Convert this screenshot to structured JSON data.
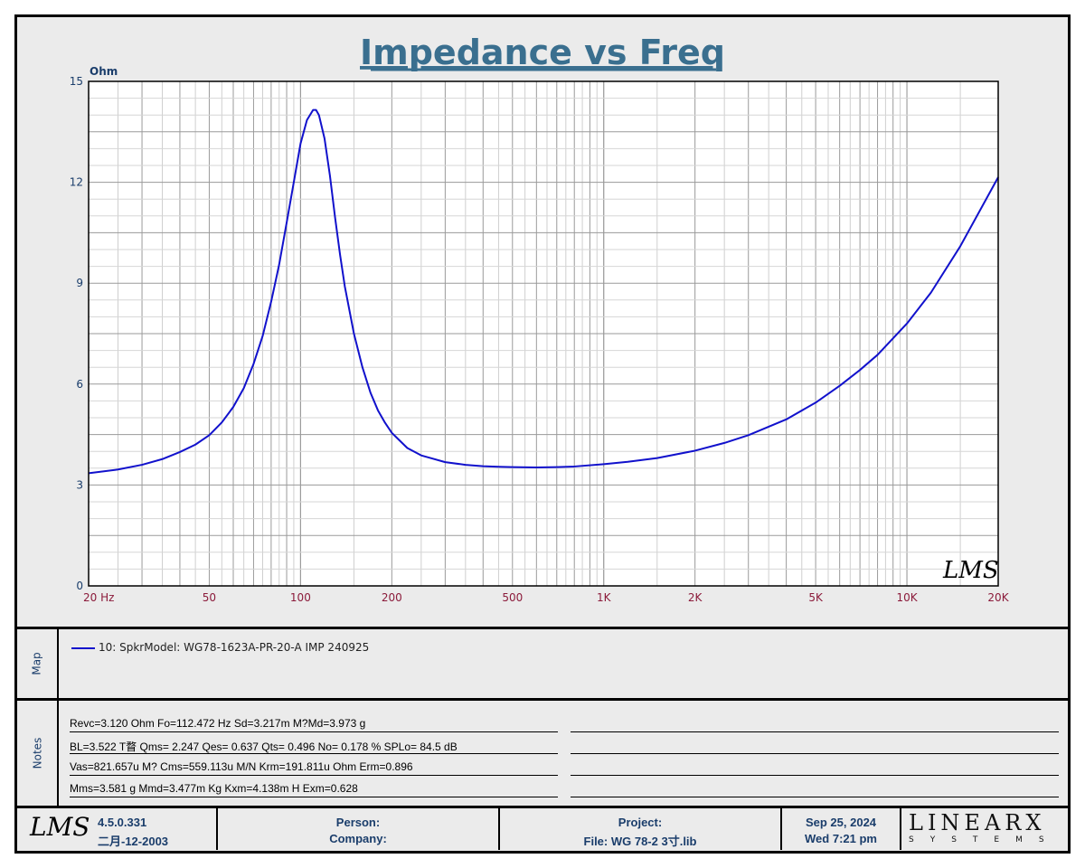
{
  "chart_data": {
    "type": "line",
    "title": "Impedance vs Freq",
    "ylabel": "Ohm",
    "xscale": "log",
    "xlim": [
      20,
      20000
    ],
    "ylim": [
      0,
      15
    ],
    "grid": true,
    "yticks": [
      {
        "v": 0,
        "label": "0"
      },
      {
        "v": 3,
        "label": "3"
      },
      {
        "v": 6,
        "label": "6"
      },
      {
        "v": 9,
        "label": "9"
      },
      {
        "v": 12,
        "label": "12"
      },
      {
        "v": 15,
        "label": "15"
      }
    ],
    "xticks": [
      {
        "v": 20,
        "label": "20  Hz"
      },
      {
        "v": 50,
        "label": "50"
      },
      {
        "v": 100,
        "label": "100"
      },
      {
        "v": 200,
        "label": "200"
      },
      {
        "v": 500,
        "label": "500"
      },
      {
        "v": 1000,
        "label": "1K"
      },
      {
        "v": 2000,
        "label": "2K"
      },
      {
        "v": 5000,
        "label": "5K"
      },
      {
        "v": 10000,
        "label": "10K"
      },
      {
        "v": 20000,
        "label": "20K"
      }
    ],
    "series": [
      {
        "name": "10: SpkrModel: WG78-1623A-PR-20-A IMP 240925",
        "color": "#1111cc",
        "x": [
          20,
          25,
          30,
          35,
          40,
          45,
          50,
          55,
          60,
          65,
          70,
          75,
          80,
          85,
          90,
          95,
          100,
          105,
          110,
          112.5,
          115,
          120,
          125,
          130,
          135,
          140,
          150,
          160,
          170,
          180,
          190,
          200,
          225,
          250,
          300,
          350,
          400,
          450,
          500,
          600,
          700,
          800,
          1000,
          1200,
          1500,
          2000,
          2500,
          3000,
          4000,
          5000,
          6000,
          7000,
          8000,
          10000,
          12000,
          15000,
          20000
        ],
        "y": [
          3.35,
          3.46,
          3.6,
          3.77,
          3.98,
          4.2,
          4.48,
          4.86,
          5.32,
          5.88,
          6.6,
          7.43,
          8.45,
          9.55,
          10.8,
          12.0,
          13.15,
          13.85,
          14.15,
          14.15,
          14.0,
          13.3,
          12.2,
          10.95,
          9.85,
          8.9,
          7.5,
          6.5,
          5.75,
          5.22,
          4.85,
          4.55,
          4.1,
          3.88,
          3.68,
          3.6,
          3.56,
          3.54,
          3.53,
          3.52,
          3.53,
          3.55,
          3.62,
          3.69,
          3.8,
          4.02,
          4.25,
          4.48,
          4.95,
          5.45,
          5.95,
          6.42,
          6.87,
          7.8,
          8.72,
          10.1,
          12.15
        ]
      }
    ],
    "watermark": "LMS"
  },
  "legend": {
    "tab_label": "Map",
    "entry": "10: SpkrModel: WG78-1623A-PR-20-A IMP 240925"
  },
  "notes": {
    "tab_label": "Notes",
    "lines": [
      "Revc=3.120 Ohm  Fo=112.472 Hz  Sd=3.217m M?Md=3.973 g",
      "BL=3.522 T瞀  Qms= 2.247  Qes= 0.637  Qts= 0.496  No= 0.178 %  SPLo= 84.5 dB",
      "Vas=821.657u M? Cms=559.113u M/N  Krm=191.811u Ohm  Erm=0.896",
      "Mms=3.581 g  Mmd=3.477m Kg  Kxm=4.138m H  Exm=0.628"
    ]
  },
  "footer": {
    "logo": "LMS",
    "version": "4.5.0.331",
    "build_date": "二月-12-2003",
    "person_label": "Person:",
    "company_label": "Company:",
    "project_label": "Project:",
    "file_label": "File: WG 78-2 3寸.lib",
    "date": "Sep 25, 2024",
    "time": "Wed  7:21 pm",
    "brand": "LINEARX",
    "brand_sub": "SYSTEMS"
  },
  "colors": {
    "title": "#3a6f8f",
    "axis_labels_y": "#1a3d6b",
    "axis_labels_x": "#8b1a3a",
    "curve": "#1111cc"
  }
}
